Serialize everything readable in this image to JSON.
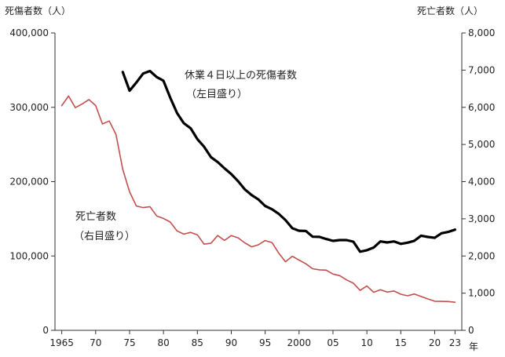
{
  "chart_data": {
    "type": "line",
    "left_axis_label": "死傷者数（人）",
    "right_axis_label": "死亡者数（人）",
    "left_ylim": [
      0,
      400000
    ],
    "right_ylim": [
      0,
      8000
    ],
    "left_ticks": [
      {
        "value": 0,
        "label": "0"
      },
      {
        "value": 100000,
        "label": "100,000"
      },
      {
        "value": 200000,
        "label": "200,000"
      },
      {
        "value": 300000,
        "label": "300,000"
      },
      {
        "value": 400000,
        "label": "400,000"
      }
    ],
    "right_ticks": [
      {
        "value": 0,
        "label": "0"
      },
      {
        "value": 1000,
        "label": "1,000"
      },
      {
        "value": 2000,
        "label": "2,000"
      },
      {
        "value": 3000,
        "label": "3,000"
      },
      {
        "value": 4000,
        "label": "4,000"
      },
      {
        "value": 5000,
        "label": "5,000"
      },
      {
        "value": 6000,
        "label": "6,000"
      },
      {
        "value": 7000,
        "label": "7,000"
      },
      {
        "value": 8000,
        "label": "8,000"
      }
    ],
    "xlim": [
      1964,
      2024
    ],
    "x_ticks": [
      {
        "value": 1965,
        "label": "1965"
      },
      {
        "value": 1970,
        "label": "70"
      },
      {
        "value": 1975,
        "label": "75"
      },
      {
        "value": 1980,
        "label": "80"
      },
      {
        "value": 1985,
        "label": "85"
      },
      {
        "value": 1990,
        "label": "90"
      },
      {
        "value": 1995,
        "label": "95"
      },
      {
        "value": 2000,
        "label": "2000"
      },
      {
        "value": 2005,
        "label": "05"
      },
      {
        "value": 2010,
        "label": "10"
      },
      {
        "value": 2015,
        "label": "15"
      },
      {
        "value": 2020,
        "label": "20"
      },
      {
        "value": 2023,
        "label": "23"
      }
    ],
    "x_unit": "年",
    "series": [
      {
        "name": "休業４日以上の死傷者数",
        "note": "（左目盛り）",
        "axis": "left",
        "color": "#000000",
        "x": [
          1974,
          1975,
          1976,
          1977,
          1978,
          1979,
          1980,
          1981,
          1982,
          1983,
          1984,
          1985,
          1986,
          1987,
          1988,
          1989,
          1990,
          1991,
          1992,
          1993,
          1994,
          1995,
          1996,
          1997,
          1998,
          1999,
          2000,
          2001,
          2002,
          2003,
          2004,
          2005,
          2006,
          2007,
          2008,
          2009,
          2010,
          2011,
          2012,
          2013,
          2014,
          2015,
          2016,
          2017,
          2018,
          2019,
          2020,
          2021,
          2022,
          2023
        ],
        "values": [
          347407,
          322322,
          333311,
          345293,
          348826,
          340731,
          335706,
          312844,
          292370,
          278623,
          271884,
          257240,
          246891,
          232953,
          226318,
          217964,
          210108,
          200633,
          189589,
          181900,
          176047,
          167316,
          162862,
          156726,
          148248,
          137316,
          133948,
          133598,
          125918,
          125750,
          122804,
          120354,
          121378,
          121356,
          119291,
          105718,
          107759,
          111349,
          119576,
          118157,
          119535,
          116311,
          117910,
          120460,
          127329,
          125611,
          124419,
          130586,
          132355,
          135371
        ]
      },
      {
        "name": "死亡者数",
        "note": "（右目盛り）",
        "axis": "right",
        "color": "#c0504d",
        "x": [
          1965,
          1966,
          1967,
          1968,
          1969,
          1970,
          1971,
          1972,
          1973,
          1974,
          1975,
          1976,
          1977,
          1978,
          1979,
          1980,
          1981,
          1982,
          1983,
          1984,
          1985,
          1986,
          1987,
          1988,
          1989,
          1990,
          1991,
          1992,
          1993,
          1994,
          1995,
          1996,
          1997,
          1998,
          1999,
          2000,
          2001,
          2002,
          2003,
          2004,
          2005,
          2006,
          2007,
          2008,
          2009,
          2010,
          2011,
          2012,
          2013,
          2014,
          2015,
          2016,
          2017,
          2018,
          2019,
          2020,
          2021,
          2022,
          2023
        ],
        "values": [
          6046,
          6303,
          5990,
          6088,
          6208,
          6048,
          5552,
          5631,
          5269,
          4330,
          3725,
          3345,
          3302,
          3326,
          3077,
          3009,
          2912,
          2674,
          2588,
          2635,
          2572,
          2318,
          2342,
          2549,
          2419,
          2550,
          2489,
          2354,
          2245,
          2301,
          2414,
          2363,
          2078,
          1844,
          1992,
          1889,
          1790,
          1658,
          1628,
          1620,
          1514,
          1472,
          1357,
          1268,
          1075,
          1195,
          1024,
          1093,
          1030,
          1057,
          972,
          928,
          978,
          909,
          845,
          784,
          778,
          774,
          755
        ]
      }
    ]
  }
}
